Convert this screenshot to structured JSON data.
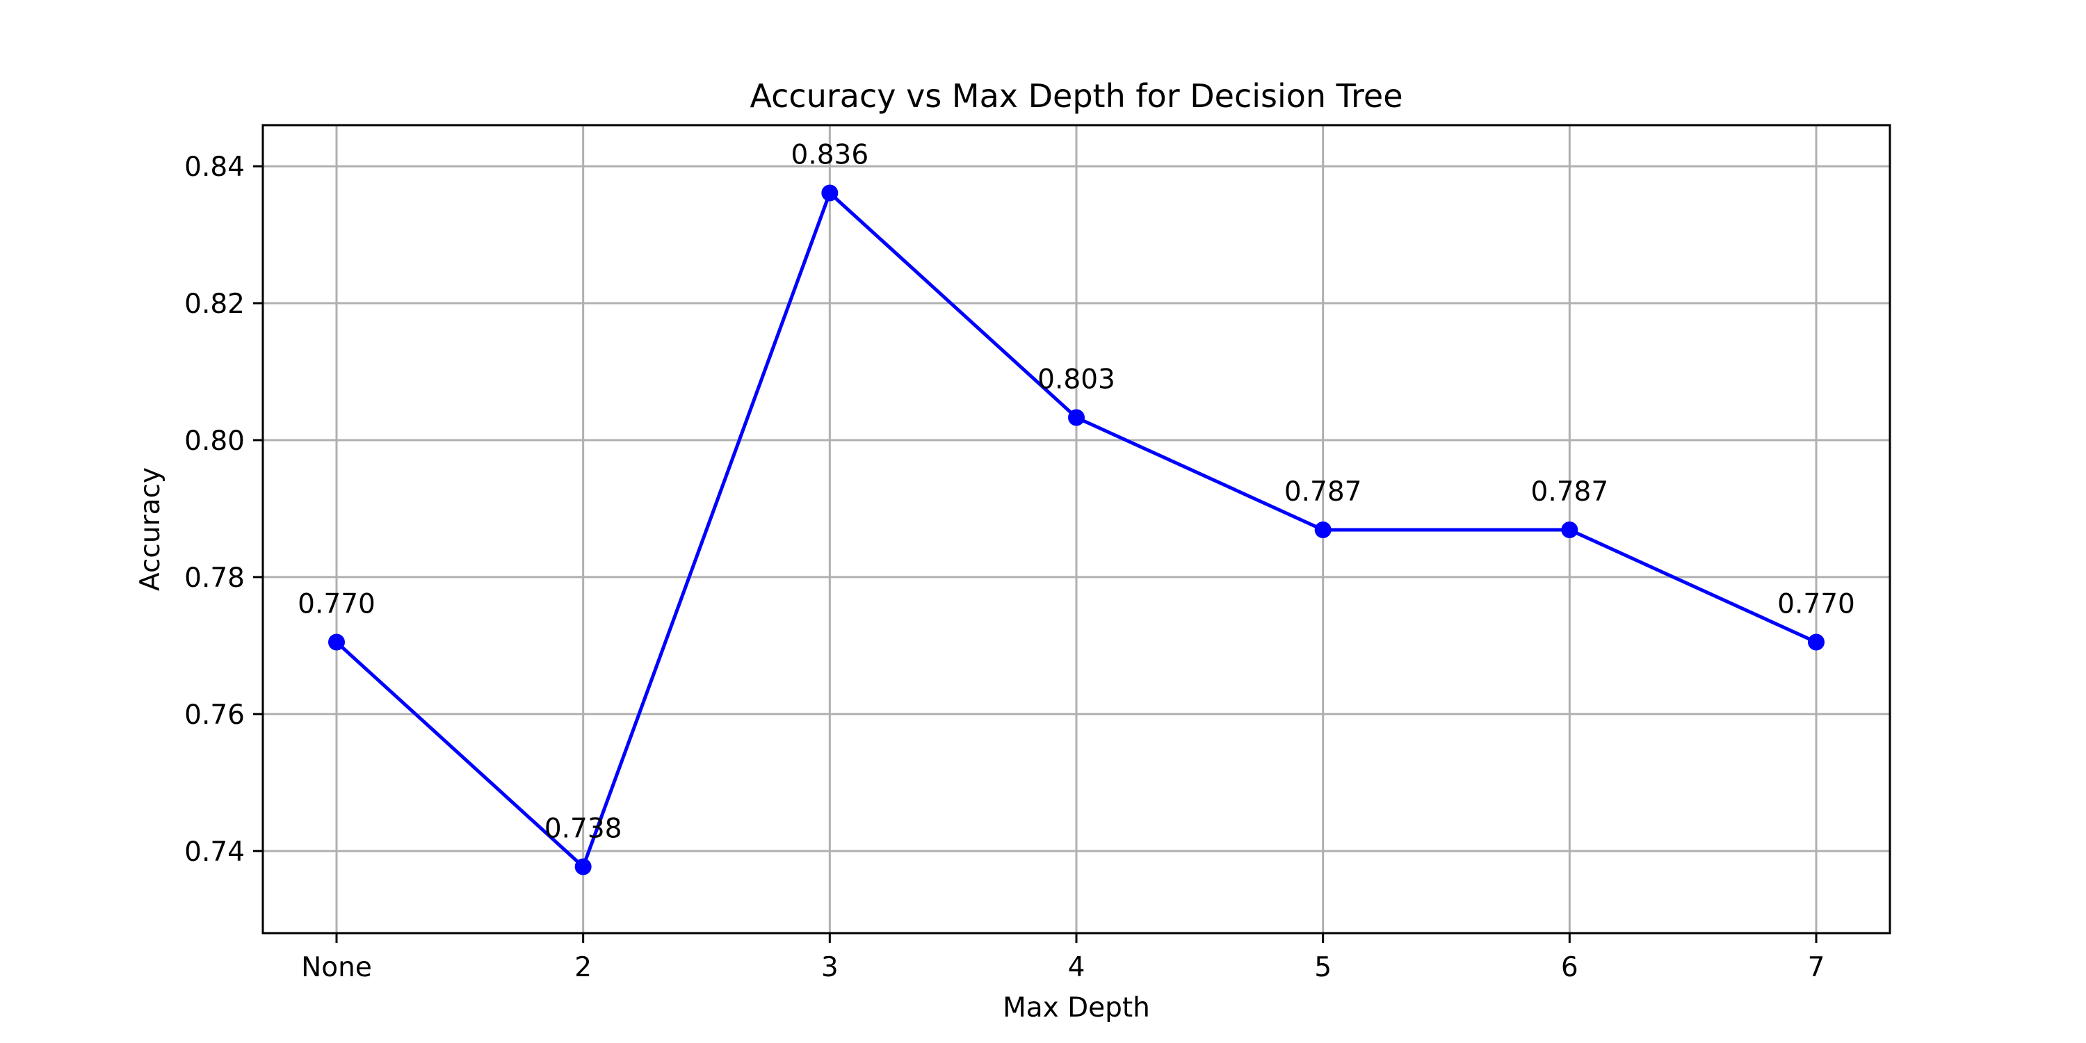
{
  "chart_data": {
    "type": "line",
    "title": "Accuracy vs Max Depth for Decision Tree",
    "xlabel": "Max Depth",
    "ylabel": "Accuracy",
    "categories": [
      "None",
      "2",
      "3",
      "4",
      "5",
      "6",
      "7"
    ],
    "series": [
      {
        "values": [
          0.7705,
          0.7377,
          0.8361,
          0.8033,
          0.7869,
          0.7869,
          0.7705
        ],
        "data_labels": [
          "0.770",
          "0.738",
          "0.836",
          "0.803",
          "0.787",
          "0.787",
          "0.770"
        ],
        "color": "#0000ff",
        "marker": "circle"
      }
    ],
    "ylim": [
      0.728,
      0.846
    ],
    "yticks": [
      0.74,
      0.76,
      0.78,
      0.8,
      0.82,
      0.84
    ],
    "ytick_labels": [
      "0.74",
      "0.76",
      "0.78",
      "0.80",
      "0.82",
      "0.84"
    ],
    "grid": true,
    "legend": false
  }
}
